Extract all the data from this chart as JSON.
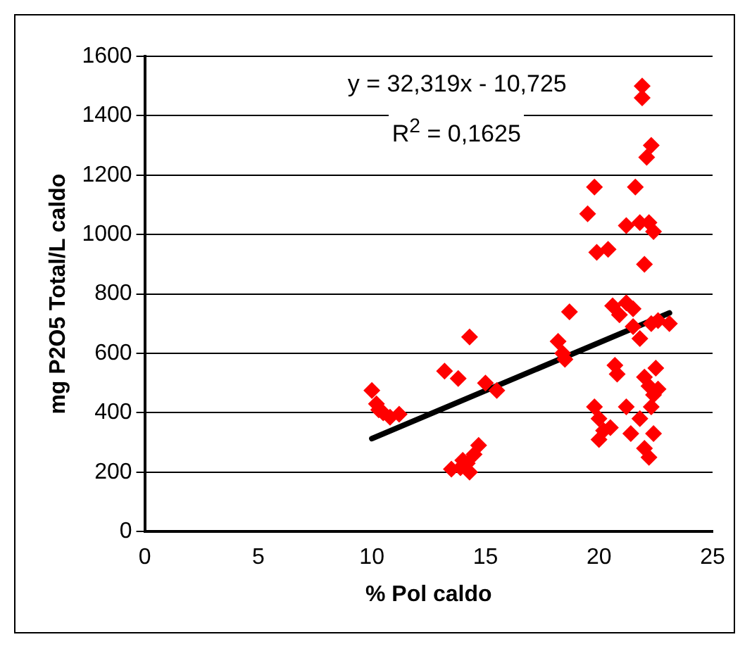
{
  "chart_data": {
    "type": "scatter",
    "xlabel": "% Pol caldo",
    "ylabel": "mg P2O5 Total/L caldo",
    "xlim": [
      0,
      25
    ],
    "xticks": [
      0,
      5,
      10,
      15,
      20,
      25
    ],
    "ylim": [
      0,
      1600
    ],
    "yticks": [
      0,
      200,
      400,
      600,
      800,
      1000,
      1200,
      1400,
      1600
    ],
    "grid": "y",
    "legend": false,
    "marker": "diamond",
    "annotations": [
      "y = 32,319x - 10,725",
      "R$^{2}$ = 0,1625"
    ],
    "series": [
      {
        "type": "scatter",
        "color": "#ff0000",
        "x": [
          10,
          10.2,
          10.5,
          10.8,
          11.2,
          10.3,
          13.2,
          13.8,
          14.3,
          15,
          15.5,
          13.5,
          13.9,
          14.2,
          14.5,
          14.7,
          14.3,
          14.0,
          18.2,
          18.4,
          18.7,
          18.5,
          19.5,
          19.8,
          19.9,
          20.4,
          20.6,
          20.9,
          20.7,
          20.8,
          21.2,
          21.2,
          21.5,
          21.6,
          21.8,
          21.9,
          21.9,
          22,
          22.1,
          22.3,
          22.2,
          22.4,
          22.3,
          22.6,
          23.1,
          21.5,
          21.8,
          19.8,
          20.0,
          20.2,
          20.0,
          20.5,
          21.2,
          21.4,
          22.0,
          22.2,
          22.5,
          22.4,
          22.3,
          22.6,
          22.0,
          22.2,
          22.4,
          21.8
        ],
        "values": [
          475,
          430,
          400,
          385,
          395,
          410,
          540,
          515,
          655,
          500,
          475,
          210,
          215,
          230,
          260,
          290,
          200,
          240,
          640,
          600,
          740,
          580,
          1070,
          1160,
          940,
          950,
          760,
          730,
          560,
          530,
          1030,
          770,
          750,
          1160,
          1040,
          1500,
          1460,
          900,
          1260,
          1300,
          1040,
          1010,
          700,
          710,
          700,
          690,
          650,
          420,
          380,
          340,
          310,
          350,
          420,
          330,
          520,
          490,
          550,
          460,
          420,
          480,
          280,
          250,
          330,
          380
        ]
      },
      {
        "type": "line",
        "color": "#000000",
        "marker": "none",
        "x": [
          10,
          23.1
        ],
        "values": [
          313,
          736
        ]
      }
    ]
  }
}
